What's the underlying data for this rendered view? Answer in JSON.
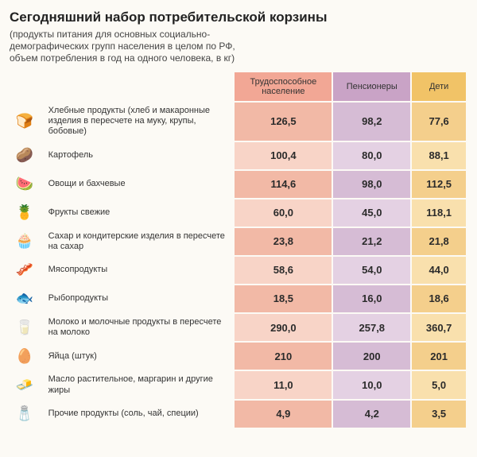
{
  "title": "Сегодняшний набор потребительской корзины",
  "subtitle": "(продукты питания для основных социально-демографических групп населения в целом по РФ, объем потребления в год на одного человека, в кг)",
  "columns": [
    {
      "key": "working",
      "label": "Трудоспособное население",
      "hdr_bg": "#f2a795",
      "cell_light": "#f8d4c7",
      "cell_dark": "#f2b9a6"
    },
    {
      "key": "pension",
      "label": "Пенсионеры",
      "hdr_bg": "#c9a3c6",
      "cell_light": "#e4d1e3",
      "cell_dark": "#d6bcd5"
    },
    {
      "key": "child",
      "label": "Дети",
      "hdr_bg": "#f1c367",
      "cell_light": "#f9e0ad",
      "cell_dark": "#f4cf8c"
    }
  ],
  "rows": [
    {
      "icon": "🍞",
      "icon_name": "bread-icon",
      "label": "Хлебные продукты (хлеб и макаронные изделия в пересчете на муку, крупы, бобовые)",
      "a": "126,5",
      "b": "98,2",
      "c": "77,6"
    },
    {
      "icon": "🥔",
      "icon_name": "potato-icon",
      "label": "Картофель",
      "a": "100,4",
      "b": "80,0",
      "c": "88,1"
    },
    {
      "icon": "🍉",
      "icon_name": "vegetable-icon",
      "label": "Овощи и бахчевые",
      "a": "114,6",
      "b": "98,0",
      "c": "112,5"
    },
    {
      "icon": "🍍",
      "icon_name": "fruit-icon",
      "label": "Фрукты свежие",
      "a": "60,0",
      "b": "45,0",
      "c": "118,1"
    },
    {
      "icon": "🧁",
      "icon_name": "sugar-icon",
      "label": "Сахар и кондитерские изделия в пересчете на сахар",
      "a": "23,8",
      "b": "21,2",
      "c": "21,8"
    },
    {
      "icon": "🥓",
      "icon_name": "meat-icon",
      "label": "Мясопродукты",
      "a": "58,6",
      "b": "54,0",
      "c": "44,0"
    },
    {
      "icon": "🐟",
      "icon_name": "fish-icon",
      "label": "Рыбопродукты",
      "a": "18,5",
      "b": "16,0",
      "c": "18,6"
    },
    {
      "icon": "🥛",
      "icon_name": "dairy-icon",
      "label": "Молоко и молочные продукты в пересчете на молоко",
      "a": "290,0",
      "b": "257,8",
      "c": "360,7"
    },
    {
      "icon": "🥚",
      "icon_name": "egg-icon",
      "label": "Яйца (штук)",
      "a": "210",
      "b": "200",
      "c": "201"
    },
    {
      "icon": "🧈",
      "icon_name": "oil-icon",
      "label": "Масло растительное, маргарин и другие жиры",
      "a": "11,0",
      "b": "10,0",
      "c": "5,0"
    },
    {
      "icon": "🧂",
      "icon_name": "other-icon",
      "label": "Прочие продукты (соль, чай, специи)",
      "a": "4,9",
      "b": "4,2",
      "c": "3,5"
    }
  ],
  "style": {
    "background": "#fcfaf5",
    "title_fontsize": 17,
    "subtitle_fontsize": 12,
    "value_fontsize": 13,
    "label_fontsize": 11,
    "text_color": "#333"
  }
}
